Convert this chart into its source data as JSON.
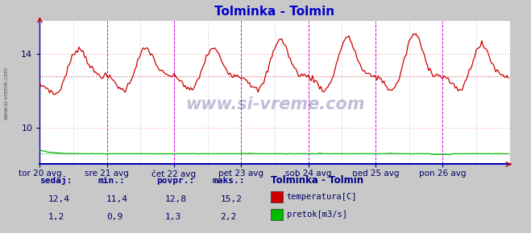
{
  "title": "Tolminka - Tolmin",
  "title_color": "#0000cc",
  "bg_color": "#c8c8c8",
  "plot_bg_color": "#ffffff",
  "plot_border_color": "#aaaaaa",
  "grid_color_h": "#ffaaaa",
  "grid_color_v_major": "#dd00dd",
  "grid_color_v_minor": "#aaaadd",
  "x_labels": [
    "tor 20 avg",
    "sre 21 avg",
    "čet 22 avg",
    "pet 23 avg",
    "sob 24 avg",
    "ned 25 avg",
    "pon 26 avg"
  ],
  "y_ticks": [
    10,
    14
  ],
  "ylim": [
    8.0,
    15.8
  ],
  "xlim": [
    0,
    336
  ],
  "avg_temp": 12.8,
  "watermark": "www.si-vreme.com",
  "footer_labels": [
    "sedaj:",
    "min.:",
    "povpr.:",
    "maks.:"
  ],
  "footer_temp": [
    "12,4",
    "11,4",
    "12,8",
    "15,2"
  ],
  "footer_flow": [
    "1,2",
    "0,9",
    "1,3",
    "2,2"
  ],
  "legend_title": "Tolminka - Tolmin",
  "legend_items": [
    "temperatura[C]",
    "pretok[m3/s]"
  ],
  "legend_colors": [
    "#cc0000",
    "#00bb00"
  ],
  "n_points": 336,
  "temp_base": 12.8,
  "temp_amplitude": 1.5,
  "flow_base": 1.2,
  "flow_max_display": 2.2,
  "flow_scale_factor": 0.12
}
